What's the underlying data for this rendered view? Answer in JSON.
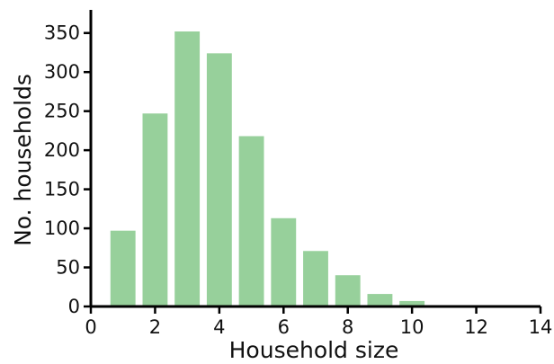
{
  "chart_data": {
    "type": "bar",
    "title": "",
    "xlabel": "Household size",
    "ylabel": "No. households",
    "categories": [
      1,
      2,
      3,
      4,
      5,
      6,
      7,
      8,
      9,
      10
    ],
    "values": [
      97,
      247,
      352,
      324,
      218,
      113,
      71,
      40,
      16,
      7
    ],
    "xlim": [
      0,
      14
    ],
    "ylim": [
      0,
      375
    ],
    "xticks": [
      0,
      2,
      4,
      6,
      8,
      10,
      12,
      14
    ],
    "yticks": [
      0,
      50,
      100,
      150,
      200,
      250,
      300,
      350
    ],
    "grid": false,
    "legend": "none",
    "bar_color": "#97d09b"
  }
}
